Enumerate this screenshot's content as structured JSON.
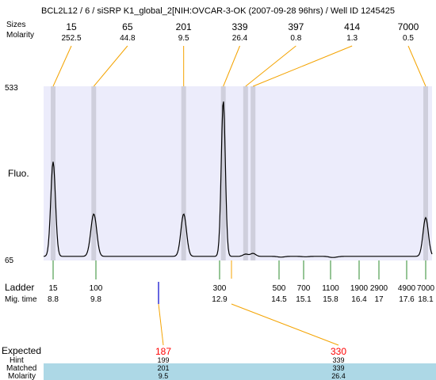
{
  "title": "BCL2L12 / 6 / siSRP K1_global_2[NIH:OVCAR-3-OK (2007-09-28 96hrs) / Well ID 1245425",
  "labels": {
    "sizes": "Sizes",
    "molarity": "Molarity",
    "fluo": "Fluo.",
    "ladder": "Ladder",
    "mig_time": "Mig. time",
    "expected": "Expected",
    "hint": "Hint",
    "matched": "Matched",
    "molarity_bottom": "Molarity"
  },
  "colors": {
    "plot_bg": "#ececfb",
    "band": "#cfcfdc",
    "orange": "#f4a300",
    "green": "#2e8b2e",
    "marker_blue": "#0000cc",
    "matched_row": "#add8e6",
    "expected_red": "#ff0000"
  },
  "chart_data": {
    "type": "line",
    "title": "",
    "xlabel": "Mig. time",
    "ylabel": "Fluo.",
    "ylim": [
      65,
      533
    ],
    "y_ticks": [
      "533",
      "65"
    ],
    "peaks": [
      {
        "size": "15",
        "molarity": "252.5",
        "mig_time": 8.8,
        "height": 330
      },
      {
        "size": "65",
        "molarity": "44.8",
        "mig_time": 9.75,
        "height": 190
      },
      {
        "size": "201",
        "molarity": "9.5",
        "mig_time": 12.0,
        "height": 190
      },
      {
        "size": "339",
        "molarity": "26.4",
        "mig_time": 13.0,
        "height": 495
      },
      {
        "size": "397",
        "molarity": "0.8",
        "mig_time": 13.6,
        "height": 82
      },
      {
        "size": "414",
        "molarity": "1.3",
        "mig_time": 13.8,
        "height": 84
      },
      {
        "size": "7000",
        "molarity": "0.5",
        "mig_time": 18.1,
        "height": 180
      }
    ],
    "ladder": [
      {
        "size": "15",
        "mig_time": "8.8"
      },
      {
        "size": "100",
        "mig_time": "9.8"
      },
      {
        "size": "300",
        "mig_time": "12.9"
      },
      {
        "size": "500",
        "mig_time": "14.5"
      },
      {
        "size": "700",
        "mig_time": "15.1"
      },
      {
        "size": "1100",
        "mig_time": "15.8"
      },
      {
        "size": "1900",
        "mig_time": "16.4"
      },
      {
        "size": "2900",
        "mig_time": "17"
      },
      {
        "size": "4900",
        "mig_time": "17.6"
      },
      {
        "size": "7000",
        "mig_time": "18.1"
      }
    ],
    "expected": [
      {
        "expected": "187",
        "hint": "199",
        "matched": "201",
        "molarity": "9.5",
        "mig_time": 12.0
      },
      {
        "expected": "330",
        "hint": "339",
        "matched": "339",
        "molarity": "26.4",
        "mig_time": 13.0
      }
    ]
  }
}
